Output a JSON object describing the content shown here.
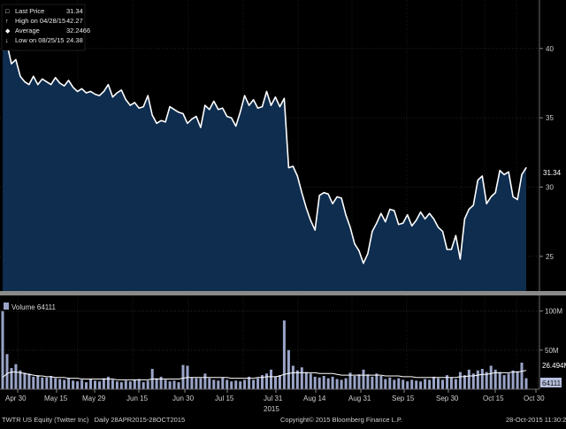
{
  "chart_data": [
    {
      "type": "area",
      "title": "",
      "xlabel": "",
      "ylabel": "",
      "ylim": [
        22.5,
        43.5
      ],
      "yticks": [
        25,
        30,
        35,
        40
      ],
      "grid": true,
      "legend_position": "top-left",
      "legend": [
        {
          "label": "Last Price",
          "value": "31.34",
          "icon": "line-icon"
        },
        {
          "label": "High on 04/28/15",
          "value": "42.27",
          "icon": "up-arrow-icon"
        },
        {
          "label": "Average",
          "value": "32.2466",
          "icon": "dash-icon"
        },
        {
          "label": "Low on 08/25/15",
          "value": "24.38",
          "icon": "down-arrow-icon"
        }
      ],
      "last_value_label": "31.34",
      "fill_color": "#0e2d4f",
      "line_color": "#ffffff",
      "series": [
        {
          "values": [
            42.3,
            40.3,
            38.9,
            39.2,
            38.0,
            37.6,
            37.4,
            38.0,
            37.4,
            37.8,
            37.6,
            37.4,
            37.9,
            37.5,
            37.3,
            37.7,
            37.2,
            36.9,
            37.1,
            36.8,
            36.9,
            36.7,
            36.6,
            36.9,
            37.4,
            36.5,
            36.8,
            37.0,
            36.3,
            35.9,
            36.1,
            35.7,
            35.8,
            36.6,
            35.2,
            34.6,
            34.8,
            34.7,
            35.8,
            35.6,
            35.4,
            35.3,
            34.6,
            34.9,
            35.1,
            34.3,
            35.9,
            35.6,
            36.2,
            35.6,
            35.7,
            35.1,
            35.0,
            34.4,
            35.4,
            36.6,
            35.9,
            36.3,
            35.7,
            35.8,
            36.9,
            35.9,
            36.5,
            35.8,
            36.4,
            31.4,
            31.5,
            30.8,
            29.6,
            28.5,
            27.6,
            26.9,
            29.4,
            29.6,
            29.5,
            28.8,
            29.3,
            29.2,
            28.0,
            27.1,
            25.9,
            25.4,
            24.5,
            25.2,
            26.8,
            27.4,
            28.1,
            27.5,
            28.4,
            28.3,
            27.3,
            27.4,
            28.0,
            27.2,
            27.6,
            28.2,
            27.7,
            28.1,
            27.7,
            27.1,
            26.8,
            25.5,
            25.5,
            26.5,
            24.8,
            27.7,
            28.4,
            28.7,
            30.5,
            30.8,
            28.8,
            29.3,
            29.6,
            31.2,
            30.9,
            31.1,
            29.3,
            29.1,
            30.9,
            31.4
          ]
        }
      ]
    },
    {
      "type": "bar",
      "title": "",
      "xlabel": "",
      "ylabel": "",
      "ylim": [
        0,
        120
      ],
      "ytick_labels": [
        "100M",
        "50M"
      ],
      "yticks": [
        100,
        50
      ],
      "legend": [
        {
          "label": "Volume 64111",
          "icon": "bar-icon"
        }
      ],
      "overlay_label": "26.494M",
      "last_value_label": "64111",
      "x_ticks": [
        "Apr 30",
        "May 15",
        "May 29",
        "Jun 15",
        "Jun 30",
        "Jul 15",
        "Jul 31",
        "Aug 14",
        "Aug 31",
        "Sep 15",
        "Sep 30",
        "Oct 15",
        "Oct 30"
      ],
      "x_year": "2015",
      "series": [
        {
          "name": "Volume",
          "values": [
            100,
            45,
            27,
            32,
            24,
            21,
            20,
            16,
            18,
            15,
            15,
            17,
            14,
            13,
            12,
            14,
            11,
            10,
            12,
            9,
            13,
            11,
            10,
            14,
            16,
            12,
            10,
            9,
            11,
            10,
            12,
            13,
            9,
            11,
            26,
            14,
            16,
            12,
            10,
            11,
            9,
            31,
            30,
            15,
            14,
            14,
            20,
            14,
            12,
            11,
            15,
            12,
            10,
            11,
            10,
            12,
            16,
            12,
            14,
            18,
            20,
            25,
            16,
            18,
            88,
            50,
            30,
            24,
            28,
            22,
            20,
            16,
            15,
            17,
            14,
            16,
            13,
            12,
            14,
            21,
            17,
            19,
            25,
            19,
            16,
            20,
            17,
            13,
            15,
            12,
            14,
            12,
            10,
            12,
            11,
            10,
            13,
            12,
            16,
            14,
            12,
            18,
            15,
            13,
            22,
            18,
            25,
            20,
            24,
            26,
            22,
            30,
            25,
            22,
            18,
            20,
            24,
            23,
            34,
            14
          ]
        },
        {
          "name": "",
          "values": [
            15,
            20,
            22,
            22,
            21,
            20,
            19,
            18,
            17,
            17,
            16,
            16,
            15,
            15,
            15,
            14,
            14,
            14,
            13,
            13,
            13,
            13,
            13,
            13,
            13,
            13,
            12,
            12,
            12,
            12,
            12,
            12,
            12,
            12,
            13,
            13,
            13,
            13,
            13,
            13,
            13,
            14,
            15,
            15,
            15,
            15,
            15,
            15,
            15,
            15,
            15,
            15,
            14,
            14,
            14,
            14,
            14,
            14,
            15,
            15,
            16,
            16,
            16,
            17,
            19,
            20,
            21,
            21,
            21,
            21,
            21,
            21,
            20,
            20,
            20,
            20,
            19,
            18,
            18,
            18,
            18,
            18,
            18,
            18,
            18,
            18,
            18,
            17,
            17,
            17,
            17,
            16,
            16,
            16,
            15,
            15,
            15,
            15,
            15,
            15,
            15,
            15,
            15,
            15,
            16,
            16,
            17,
            17,
            18,
            19,
            19,
            20,
            21,
            21,
            21,
            21,
            22,
            22,
            23,
            24
          ]
        }
      ]
    }
  ],
  "footer": {
    "left": "TWTR US Equity (Twitter Inc)   Daily 28APR2015-28OCT2015",
    "center": "Copyright© 2015 Bloomberg Finance L.P.",
    "right": "28-Oct-2015 11:30:27"
  }
}
